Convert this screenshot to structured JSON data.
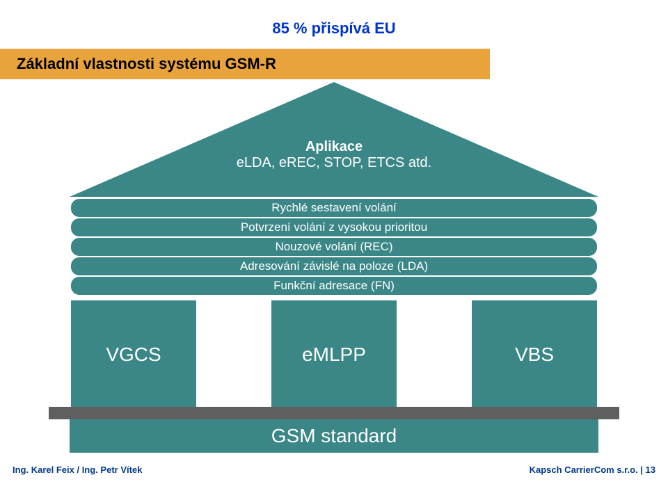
{
  "colors": {
    "teal": "#3b8686",
    "orange_band": "#e8a33d",
    "base_gray": "#5f5f5f",
    "header_blue": "#0033cc",
    "footer_blue": "#003a8c",
    "white": "#ffffff"
  },
  "header": {
    "top_text": "85 % přispívá EU",
    "top_fontsize": 22,
    "top_color": "#0033cc"
  },
  "title": {
    "text": "Základní vlastnosti systému GSM-R",
    "fontsize": 22,
    "band_color": "#e8a33d",
    "text_color": "#000000"
  },
  "roof": {
    "fill": "#3b8686",
    "line1": "Aplikace",
    "line2": "eLDA, eREC, STOP, ETCS atd.",
    "fontsize": 20
  },
  "features": {
    "fill": "#3b8686",
    "border": "#ffffff",
    "text_color": "#ffffff",
    "fontsize": 17,
    "items": [
      "Rychlé sestavení volání",
      "Potvrzení volání z vysokou prioritou",
      "Nouzové volání (REC)",
      "Adresování závislé na poloze (LDA)",
      "Funkční adresace (FN)"
    ]
  },
  "pillars": {
    "fill": "#3b8686",
    "text_color": "#ffffff",
    "fontsize": 28,
    "items": [
      "VGCS",
      "eMLPP",
      "VBS"
    ]
  },
  "base": {
    "bar_color": "#5f5f5f",
    "fill": "#3b8686",
    "text": "GSM standard",
    "text_color": "#ffffff",
    "fontsize": 28
  },
  "footer": {
    "left": "Ing. Karel Feix / Ing. Petr Vítek",
    "right_prefix": "Kapsch CarrierCom s.r.o.  |  ",
    "page": "13",
    "color": "#003a8c",
    "fontsize": 13
  }
}
